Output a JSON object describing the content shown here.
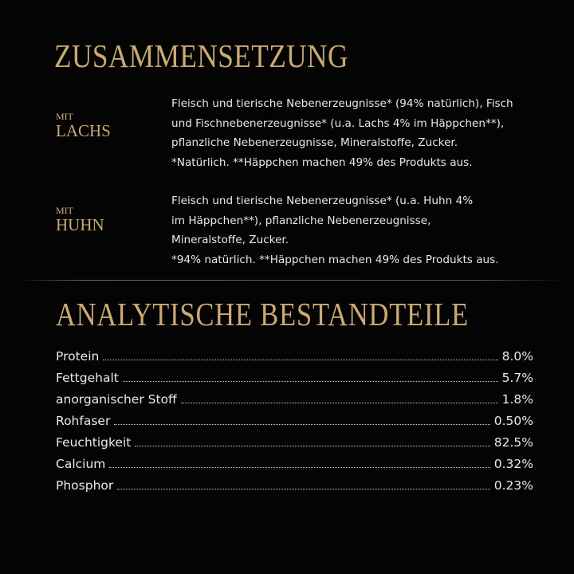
{
  "composition": {
    "title": "ZUSAMMENSETZUNG",
    "variants": [
      {
        "prefix": "MIT",
        "name": "LACHS",
        "lines": [
          "Fleisch und tierische Nebenerzeugnisse* (94% natürlich), Fisch",
          "und Fischnebenerzeugnisse* (u.a. Lachs 4% im Häppchen**),",
          "pflanzliche Nebenerzeugnisse, Mineralstoffe, Zucker.",
          "*Natürlich. **Häppchen machen 49% des Produkts aus."
        ]
      },
      {
        "prefix": "MIT",
        "name": "HUHN",
        "lines": [
          "Fleisch und tierische Nebenerzeugnisse* (u.a. Huhn 4%",
          "im Häppchen**), pflanzliche Nebenerzeugnisse,",
          "Mineralstoffe, Zucker.",
          "*94% natürlich. **Häppchen machen 49% des Produkts aus."
        ]
      }
    ]
  },
  "analysis": {
    "title": "ANALYTISCHE BESTANDTEILE",
    "rows": [
      {
        "label": "Protein",
        "value": "8.0%"
      },
      {
        "label": "Fettgehalt",
        "value": "5.7%"
      },
      {
        "label": "anorganischer Stoff",
        "value": "1.8%"
      },
      {
        "label": "Rohfaser",
        "value": "0.50%"
      },
      {
        "label": "Feuchtigkeit",
        "value": "82.5%"
      },
      {
        "label": "Calcium",
        "value": "0.32%"
      },
      {
        "label": "Phosphor",
        "value": "0.23%"
      }
    ]
  },
  "colors": {
    "background": "#050404",
    "gold": "#c9aa74",
    "text": "#ece9e4"
  }
}
